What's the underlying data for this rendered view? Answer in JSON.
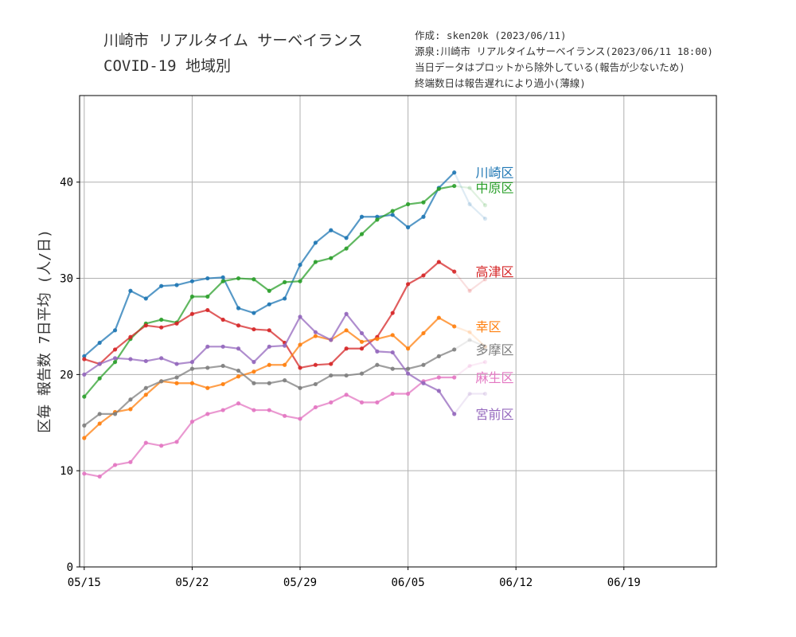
{
  "header": {
    "title_line1": "川崎市 リアルタイム サーベイランス",
    "title_line2": "COVID-19 地域別",
    "notes": [
      "作成: sken20k (2023/06/11)",
      "源泉:川崎市 リアルタイムサーベイランス(2023/06/11 18:00)",
      "当日データはプロットから除外している(報告が少ないため)",
      "終端数日は報告遅れにより過小(薄線)"
    ]
  },
  "chart_data": {
    "type": "line",
    "title": "川崎市 リアルタイム サーベイランス COVID-19 地域別",
    "ylabel": "区毎 報告数 7日平均 (人/日)",
    "xlabel": "",
    "x_start": "05/15",
    "x": [
      "05/15",
      "05/16",
      "05/17",
      "05/18",
      "05/19",
      "05/20",
      "05/21",
      "05/22",
      "05/23",
      "05/24",
      "05/25",
      "05/26",
      "05/27",
      "05/28",
      "05/29",
      "05/30",
      "05/31",
      "06/01",
      "06/02",
      "06/03",
      "06/04",
      "06/05",
      "06/06",
      "06/07",
      "06/08",
      "06/09",
      "06/10"
    ],
    "xlim": [
      "05/15",
      "06/25"
    ],
    "ylim": [
      0,
      49
    ],
    "xticks": [
      "05/15",
      "05/22",
      "05/29",
      "06/05",
      "06/12",
      "06/19"
    ],
    "yticks": [
      0,
      10,
      20,
      30,
      40
    ],
    "grid": true,
    "faded_from": "06/09",
    "series": [
      {
        "name": "川崎区",
        "color": "#1f77b4",
        "values": [
          21.9,
          23.3,
          24.6,
          28.7,
          27.9,
          29.2,
          29.3,
          29.7,
          30.0,
          30.1,
          26.9,
          26.4,
          27.3,
          27.9,
          31.4,
          33.7,
          35.0,
          34.2,
          36.4,
          36.4,
          36.6,
          35.3,
          36.4,
          39.4,
          41.0,
          37.7,
          36.2
        ]
      },
      {
        "name": "中原区",
        "color": "#2ca02c",
        "values": [
          17.7,
          19.6,
          21.3,
          23.7,
          25.3,
          25.7,
          25.4,
          28.1,
          28.1,
          29.7,
          30.0,
          29.9,
          28.7,
          29.6,
          29.7,
          31.7,
          32.1,
          33.1,
          34.6,
          36.1,
          37.0,
          37.7,
          37.9,
          39.3,
          39.6,
          39.4,
          37.6
        ]
      },
      {
        "name": "高津区",
        "color": "#d62728",
        "values": [
          21.6,
          21.1,
          22.6,
          23.9,
          25.1,
          24.9,
          25.3,
          26.3,
          26.7,
          25.7,
          25.1,
          24.7,
          24.6,
          23.3,
          20.7,
          21.0,
          21.1,
          22.7,
          22.7,
          23.9,
          26.4,
          29.4,
          30.3,
          31.7,
          30.7,
          28.7,
          29.9
        ]
      },
      {
        "name": "幸区",
        "color": "#ff7f0e",
        "values": [
          13.4,
          14.9,
          16.1,
          16.4,
          17.9,
          19.3,
          19.1,
          19.1,
          18.6,
          19.0,
          19.8,
          20.3,
          21.0,
          21.0,
          23.1,
          24.0,
          23.6,
          24.6,
          23.4,
          23.7,
          24.1,
          22.7,
          24.3,
          25.9,
          25.0,
          24.4,
          22.9
        ]
      },
      {
        "name": "多摩区",
        "color": "#7f7f7f",
        "values": [
          14.7,
          15.9,
          15.9,
          17.4,
          18.6,
          19.3,
          19.7,
          20.6,
          20.7,
          20.9,
          20.4,
          19.1,
          19.1,
          19.4,
          18.6,
          19.0,
          19.9,
          19.9,
          20.1,
          21.0,
          20.6,
          20.6,
          21.0,
          21.9,
          22.6,
          23.6,
          22.9
        ]
      },
      {
        "name": "麻生区",
        "color": "#e377c2",
        "values": [
          9.7,
          9.4,
          10.6,
          10.9,
          12.9,
          12.6,
          13.0,
          15.1,
          15.9,
          16.3,
          17.0,
          16.3,
          16.3,
          15.7,
          15.4,
          16.6,
          17.1,
          17.9,
          17.1,
          17.1,
          18.0,
          18.0,
          19.3,
          19.7,
          19.7,
          20.9,
          21.3
        ]
      },
      {
        "name": "宮前区",
        "color": "#9467bd",
        "values": [
          20.0,
          21.1,
          21.7,
          21.6,
          21.4,
          21.7,
          21.1,
          21.3,
          22.9,
          22.9,
          22.7,
          21.3,
          22.9,
          23.0,
          26.0,
          24.4,
          23.6,
          26.3,
          24.3,
          22.4,
          22.3,
          20.1,
          19.1,
          18.3,
          15.9,
          18.0,
          18.0
        ]
      }
    ]
  }
}
